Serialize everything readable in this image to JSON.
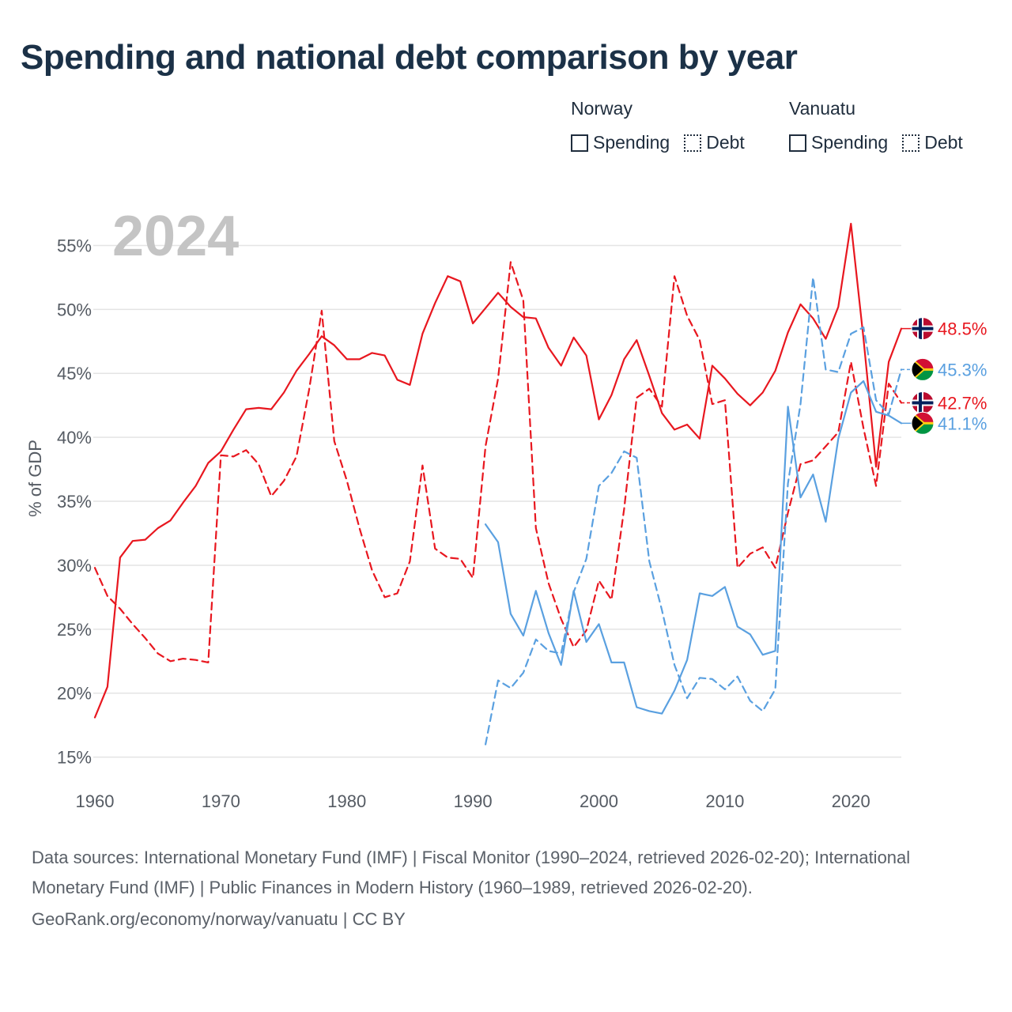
{
  "title": "Spending and national debt comparison by year",
  "legend": {
    "groups": [
      {
        "country": "Norway",
        "color": "#e8171f",
        "items": [
          {
            "label": "Spending",
            "style": "solid"
          },
          {
            "label": "Debt",
            "style": "dotted"
          }
        ]
      },
      {
        "country": "Vanuatu",
        "color": "#5aa0e0",
        "items": [
          {
            "label": "Spending",
            "style": "solid"
          },
          {
            "label": "Debt",
            "style": "dotted"
          }
        ]
      }
    ]
  },
  "chart_data": {
    "type": "line",
    "title": "Spending and national debt comparison by year",
    "ylabel": "% of GDP",
    "xlabel": "",
    "year_label": "2024",
    "xlim": [
      1960,
      2024
    ],
    "ylim": [
      13,
      57.5
    ],
    "x_ticks": [
      1960,
      1970,
      1980,
      1990,
      2000,
      2010,
      2020
    ],
    "y_ticks": [
      15,
      20,
      25,
      30,
      35,
      40,
      45,
      50,
      55
    ],
    "y_tick_labels": [
      "15%",
      "20%",
      "25%",
      "30%",
      "35%",
      "40%",
      "45%",
      "50%",
      "55%"
    ],
    "grid": true,
    "series": [
      {
        "name": "Norway Spending",
        "country": "Norway",
        "metric": "Spending",
        "color": "#e8171f",
        "dash": "solid",
        "start": 1960,
        "values": [
          18.1,
          20.5,
          30.6,
          31.9,
          32.0,
          32.9,
          33.5,
          34.9,
          36.2,
          38.0,
          38.9,
          40.6,
          42.2,
          42.3,
          42.2,
          43.5,
          45.2,
          46.5,
          47.9,
          47.2,
          46.1,
          46.1,
          46.6,
          46.4,
          44.5,
          44.1,
          48.1,
          50.5,
          52.6,
          52.2,
          48.9,
          50.1,
          51.3,
          50.2,
          49.4,
          49.3,
          47.0,
          45.6,
          47.8,
          46.4,
          41.4,
          43.3,
          46.1,
          47.6,
          44.8,
          41.9,
          40.6,
          41.0,
          39.9,
          45.6,
          44.6,
          43.4,
          42.5,
          43.5,
          45.2,
          48.2,
          50.4,
          49.3,
          47.7,
          50.2,
          56.7,
          47.7,
          37.7,
          45.9,
          48.5
        ],
        "end_label": "48.5%"
      },
      {
        "name": "Norway Debt",
        "country": "Norway",
        "metric": "Debt",
        "color": "#e8171f",
        "dash": "dashed",
        "start": 1960,
        "values": [
          29.8,
          27.6,
          26.6,
          25.4,
          24.3,
          23.1,
          22.5,
          22.7,
          22.6,
          22.4,
          38.6,
          38.5,
          39.0,
          37.9,
          35.4,
          36.6,
          38.5,
          43.7,
          49.9,
          39.7,
          36.6,
          32.9,
          29.6,
          27.5,
          27.8,
          30.3,
          37.8,
          31.3,
          30.6,
          30.5,
          29.0,
          39.3,
          44.6,
          53.7,
          50.7,
          32.9,
          28.6,
          25.8,
          23.6,
          24.9,
          28.8,
          27.3,
          34.4,
          43.1,
          43.8,
          42.4,
          52.6,
          49.5,
          47.6,
          42.6,
          42.9,
          29.8,
          30.9,
          31.4,
          29.8,
          34.1,
          37.9,
          38.2,
          39.3,
          40.4,
          45.9,
          40.7,
          36.2,
          44.2,
          42.7
        ],
        "end_label": "42.7%"
      },
      {
        "name": "Vanuatu Spending",
        "country": "Vanuatu",
        "metric": "Spending",
        "color": "#5aa0e0",
        "dash": "solid",
        "start": 1991,
        "values": [
          33.2,
          31.8,
          26.2,
          24.5,
          28.0,
          24.7,
          22.2,
          28.0,
          24.0,
          25.4,
          22.4,
          22.4,
          18.9,
          18.6,
          18.4,
          20.2,
          22.6,
          27.8,
          27.6,
          28.3,
          25.2,
          24.6,
          23.0,
          23.3,
          42.4,
          35.3,
          37.1,
          33.4,
          39.9,
          43.5,
          44.4,
          42.0,
          41.7,
          41.1
        ],
        "end_label": "41.1%"
      },
      {
        "name": "Vanuatu Debt",
        "country": "Vanuatu",
        "metric": "Debt",
        "color": "#5aa0e0",
        "dash": "dashed",
        "start": 1991,
        "values": [
          16.0,
          21.0,
          20.4,
          21.6,
          24.2,
          23.3,
          23.1,
          27.9,
          30.5,
          36.2,
          37.2,
          38.9,
          38.4,
          30.3,
          26.5,
          22.2,
          19.6,
          21.2,
          21.1,
          20.3,
          21.3,
          19.4,
          18.6,
          20.3,
          36.4,
          42.6,
          52.5,
          45.3,
          45.1,
          48.1,
          48.6,
          42.9,
          41.8,
          45.3
        ],
        "end_label": "45.3%"
      }
    ]
  },
  "footer": {
    "sources": "Data sources: International Monetary Fund (IMF) | Fiscal Monitor (1990–2024, retrieved 2026-02-20); International Monetary Fund (IMF) | Public Finances in Modern History (1960–1989, retrieved 2026-02-20).",
    "attribution": "GeoRank.org/economy/norway/vanuatu | CC BY"
  }
}
